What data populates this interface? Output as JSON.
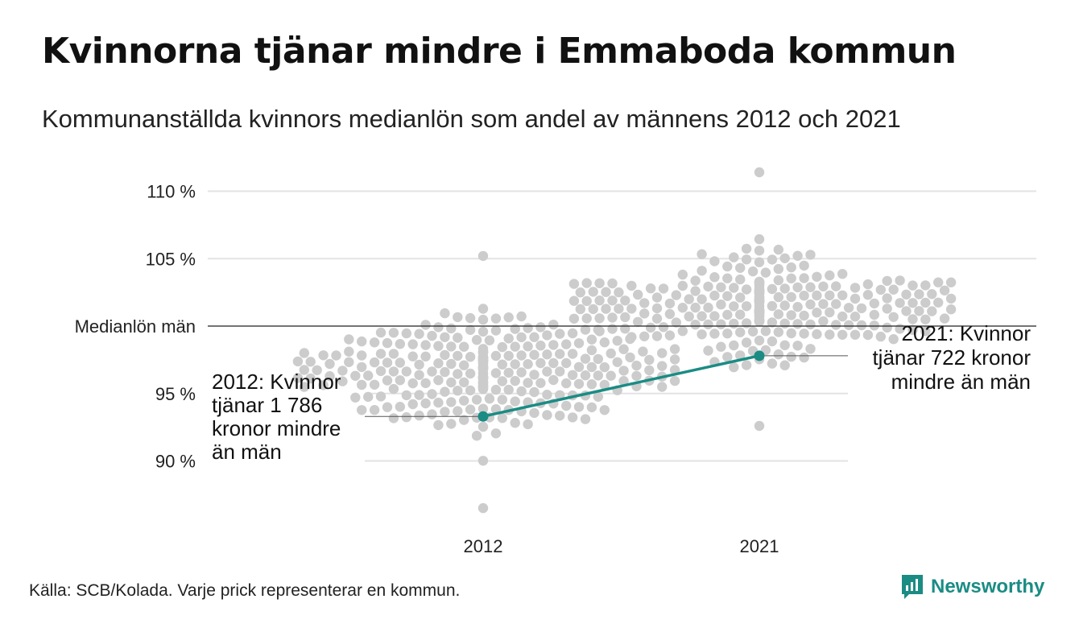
{
  "title": "Kvinnorna tjänar mindre i Emmaboda kommun",
  "subtitle": "Kommunanställda kvinnors medianlön som andel av männens 2012 och 2021",
  "source": "Källa: SCB/Kolada. Varje prick representerar en kommun.",
  "brand": {
    "name": "Newsworthy",
    "icon": "newsworthy-logo-icon",
    "color": "#1a8c84"
  },
  "colors": {
    "dots": "#cccccc",
    "highlight": "#1a8c84",
    "reference": "#222222",
    "grid": "#e3e3e3",
    "text": "#222222"
  },
  "chart_data": {
    "type": "scatter",
    "subtype": "beeswarm",
    "title": "Kvinnorna tjänar mindre i Emmaboda kommun",
    "subtitle": "Kommunanställda kvinnors medianlön som andel av männens 2012 och 2021",
    "categories": [
      "2012",
      "2021"
    ],
    "ylim": [
      86,
      112
    ],
    "yticks": [
      {
        "value": 110,
        "label": "110 %"
      },
      {
        "value": 105,
        "label": "105 %"
      },
      {
        "value": 100,
        "label": "Medianlön män"
      },
      {
        "value": 95,
        "label": "95 %"
      },
      {
        "value": 90,
        "label": "90 %"
      }
    ],
    "grid": true,
    "reference_line": {
      "value": 100,
      "label": "Medianlön män"
    },
    "highlight": {
      "values": [
        93.3,
        97.8
      ],
      "annotations": [
        {
          "category": "2012",
          "lines": [
            "2012: Kvinnor",
            "tjänar 1 786",
            "kronor mindre",
            "än män"
          ]
        },
        {
          "category": "2021",
          "lines": [
            "2021: Kvinnor",
            "tjänar 722 kronor",
            "mindre än män"
          ]
        }
      ]
    },
    "distribution_summary": [
      {
        "category": "2012",
        "min": 86.5,
        "max": 105.2,
        "median": 96.5
      },
      {
        "category": "2021",
        "min": 92.6,
        "max": 111.4,
        "median": 101.5
      }
    ]
  }
}
